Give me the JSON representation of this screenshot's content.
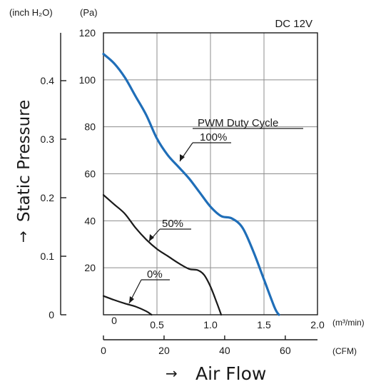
{
  "chart_data": {
    "type": "line",
    "condition_label": "DC 12V",
    "xlabel": "Air Flow",
    "ylabel": "Static Pressure",
    "axis_arrow": "→",
    "y_unit_inch": "(inch H₂O)",
    "y_unit_pa": "(Pa)",
    "x_unit_m3": "(m³/min)",
    "x_unit_cfm": "(CFM)",
    "x_m3_range": [
      0,
      2.0
    ],
    "x_m3_ticks": [
      "0",
      "0.5",
      "1.0",
      "1.5",
      "2.0"
    ],
    "x_m3_tick_values": [
      0,
      0.5,
      1.0,
      1.5,
      2.0
    ],
    "x_cfm_ticks": [
      "0",
      "20",
      "40",
      "60"
    ],
    "x_cfm_tick_values": [
      0,
      20,
      40,
      60
    ],
    "y_pa_range": [
      0,
      120
    ],
    "y_pa_ticks": [
      "20",
      "40",
      "60",
      "80",
      "100",
      "120"
    ],
    "y_pa_tick_values": [
      20,
      40,
      60,
      80,
      100,
      120
    ],
    "y_inch_ticks": [
      "0",
      "0.1",
      "0.2",
      "0.3",
      "0.4"
    ],
    "y_inch_tick_values": [
      0,
      0.1,
      0.2,
      0.3,
      0.4
    ],
    "pa_zero_label": "0",
    "grid": true,
    "legend_title": "PWM Duty Cycle",
    "series": [
      {
        "name": "100%",
        "color": "#1f6eb8",
        "x": [
          0,
          0.1,
          0.2,
          0.3,
          0.4,
          0.5,
          0.6,
          0.7,
          0.8,
          0.9,
          1.0,
          1.1,
          1.2,
          1.3,
          1.4,
          1.5,
          1.6,
          1.64
        ],
        "y": [
          111,
          107,
          101,
          93,
          85,
          75,
          68,
          63,
          58,
          52,
          46,
          42,
          41,
          37,
          27,
          15,
          3,
          0
        ]
      },
      {
        "name": "50%",
        "color": "#1a1a1a",
        "x": [
          0,
          0.1,
          0.2,
          0.3,
          0.4,
          0.5,
          0.6,
          0.7,
          0.8,
          0.88,
          0.94,
          1.0,
          1.06,
          1.1
        ],
        "y": [
          51,
          47,
          43,
          37,
          32,
          28,
          25,
          22,
          19.5,
          19,
          17,
          12,
          5,
          0
        ]
      },
      {
        "name": "0%",
        "color": "#1a1a1a",
        "x": [
          0,
          0.1,
          0.2,
          0.3,
          0.4,
          0.45
        ],
        "y": [
          8,
          6.3,
          4.8,
          3.5,
          1.5,
          0
        ]
      }
    ]
  }
}
